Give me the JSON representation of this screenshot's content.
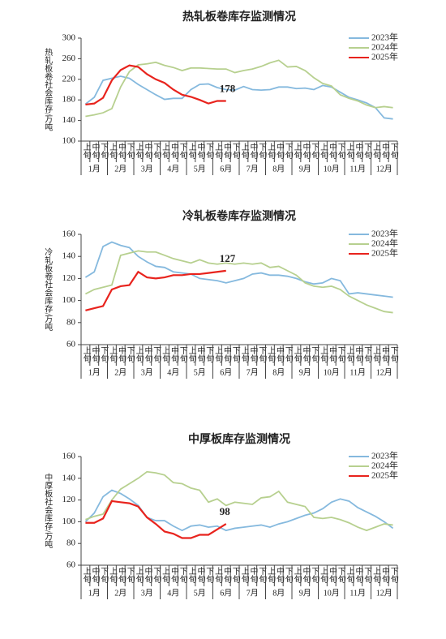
{
  "chart_data": [
    {
      "type": "line",
      "title": "热轧板卷库存监测情况",
      "ylabel": "热轧板卷社会库存/万吨",
      "categories": [
        "上旬",
        "中旬",
        "下旬",
        "上旬",
        "中旬",
        "下旬",
        "上旬",
        "中旬",
        "下旬",
        "上旬",
        "中旬",
        "下旬",
        "上旬",
        "中旬",
        "下旬",
        "上旬",
        "中旬",
        "下旬",
        "上旬",
        "中旬",
        "下旬",
        "上旬",
        "中旬",
        "下旬",
        "上旬",
        "中旬",
        "下旬",
        "上旬",
        "中旬",
        "下旬",
        "上旬",
        "中旬",
        "下旬",
        "上旬",
        "中旬",
        "下旬"
      ],
      "months": [
        "1月",
        "2月",
        "3月",
        "4月",
        "5月",
        "6月",
        "7月",
        "8月",
        "9月",
        "10月",
        "11月",
        "12月"
      ],
      "ylim": [
        100,
        300
      ],
      "yticks": [
        100,
        140,
        180,
        220,
        260,
        300
      ],
      "series": [
        {
          "name": "2023年",
          "color": "#85b9de",
          "values": [
            172,
            185,
            218,
            222,
            226,
            222,
            210,
            200,
            190,
            181,
            183,
            183,
            200,
            210,
            211,
            204,
            200,
            199,
            206,
            200,
            199,
            200,
            205,
            205,
            202,
            203,
            200,
            208,
            205,
            195,
            185,
            180,
            174,
            165,
            145,
            143
          ]
        },
        {
          "name": "2024年",
          "color": "#b7d08f",
          "values": [
            148,
            151,
            155,
            163,
            205,
            235,
            248,
            250,
            253,
            247,
            243,
            237,
            242,
            242,
            241,
            240,
            240,
            233,
            237,
            240,
            245,
            252,
            257,
            244,
            245,
            237,
            223,
            212,
            207,
            190,
            183,
            178,
            170,
            165,
            167,
            165
          ]
        },
        {
          "name": "2025年",
          "color": "#e8231d",
          "values": [
            171,
            173,
            184,
            218,
            238,
            247,
            244,
            230,
            220,
            213,
            200,
            190,
            186,
            180,
            173,
            178,
            178,
            null,
            null,
            null,
            null,
            null,
            null,
            null,
            null,
            null,
            null,
            null,
            null,
            null,
            null,
            null,
            null,
            null,
            null,
            null
          ]
        }
      ]
    },
    {
      "type": "line",
      "title": "冷轧板卷库存监测情况",
      "ylabel": "冷轧板卷社会库存/万吨",
      "categories": [
        "上旬",
        "中旬",
        "下旬",
        "上旬",
        "中旬",
        "下旬",
        "上旬",
        "中旬",
        "下旬",
        "上旬",
        "中旬",
        "下旬",
        "上旬",
        "中旬",
        "下旬",
        "上旬",
        "中旬",
        "下旬",
        "上旬",
        "中旬",
        "下旬",
        "上旬",
        "中旬",
        "下旬",
        "上旬",
        "中旬",
        "下旬",
        "上旬",
        "中旬",
        "下旬",
        "上旬",
        "中旬",
        "下旬",
        "上旬",
        "中旬",
        "下旬"
      ],
      "months": [
        "1月",
        "2月",
        "3月",
        "4月",
        "5月",
        "6月",
        "7月",
        "8月",
        "9月",
        "10月",
        "11月",
        "12月"
      ],
      "ylim": [
        60,
        160
      ],
      "yticks": [
        60,
        80,
        100,
        120,
        140,
        160
      ],
      "series": [
        {
          "name": "2023年",
          "color": "#85b9de",
          "values": [
            121,
            126,
            149,
            153,
            150,
            148,
            140,
            135,
            131,
            130,
            126,
            125,
            124,
            120,
            119,
            118,
            116,
            118,
            120,
            124,
            125,
            123,
            123,
            122,
            120,
            117,
            115,
            116,
            120,
            118,
            106,
            107,
            106,
            105,
            104,
            103
          ]
        },
        {
          "name": "2024年",
          "color": "#b7d08f",
          "values": [
            106,
            110,
            112,
            114,
            141,
            143,
            145,
            144,
            144,
            141,
            138,
            136,
            134,
            137,
            134,
            133,
            134,
            133,
            134,
            133,
            134,
            130,
            131,
            127,
            123,
            116,
            113,
            112,
            113,
            110,
            104,
            100,
            96,
            93,
            90,
            89
          ]
        },
        {
          "name": "2025年",
          "color": "#e8231d",
          "values": [
            91,
            93,
            95,
            110,
            113,
            114,
            126,
            121,
            120,
            121,
            123,
            123,
            124,
            124,
            125,
            126,
            127,
            null,
            null,
            null,
            null,
            null,
            null,
            null,
            null,
            null,
            null,
            null,
            null,
            null,
            null,
            null,
            null,
            null,
            null,
            null
          ]
        }
      ]
    },
    {
      "type": "line",
      "title": "中厚板库存监测情况",
      "ylabel": "中厚板社会库存/万吨",
      "categories": [
        "上旬",
        "中旬",
        "下旬",
        "上旬",
        "中旬",
        "下旬",
        "上旬",
        "中旬",
        "下旬",
        "上旬",
        "中旬",
        "下旬",
        "上旬",
        "中旬",
        "下旬",
        "上旬",
        "中旬",
        "下旬",
        "上旬",
        "中旬",
        "下旬",
        "上旬",
        "中旬",
        "下旬",
        "上旬",
        "中旬",
        "下旬",
        "上旬",
        "中旬",
        "下旬",
        "上旬",
        "中旬",
        "下旬",
        "上旬",
        "中旬",
        "下旬"
      ],
      "months": [
        "1月",
        "2月",
        "3月",
        "4月",
        "5月",
        "6月",
        "7月",
        "8月",
        "9月",
        "10月",
        "11月",
        "12月"
      ],
      "ylim": [
        60,
        160
      ],
      "yticks": [
        60,
        80,
        100,
        120,
        140,
        160
      ],
      "series": [
        {
          "name": "2023年",
          "color": "#85b9de",
          "values": [
            100,
            108,
            123,
            129,
            126,
            121,
            115,
            104,
            101,
            101,
            96,
            92,
            96,
            97,
            95,
            96,
            92,
            94,
            95,
            96,
            97,
            95,
            98,
            100,
            103,
            106,
            108,
            112,
            118,
            121,
            119,
            113,
            109,
            105,
            100,
            94
          ]
        },
        {
          "name": "2024年",
          "color": "#b7d08f",
          "values": [
            102,
            105,
            107,
            120,
            130,
            135,
            140,
            146,
            145,
            143,
            136,
            135,
            131,
            129,
            118,
            121,
            115,
            118,
            117,
            116,
            122,
            123,
            128,
            118,
            116,
            114,
            104,
            103,
            104,
            102,
            99,
            95,
            92,
            95,
            98,
            97
          ]
        },
        {
          "name": "2025年",
          "color": "#e8231d",
          "values": [
            99,
            99,
            103,
            119,
            118,
            117,
            114,
            104,
            98,
            91,
            89,
            85,
            85,
            88,
            88,
            93,
            98,
            null,
            null,
            null,
            null,
            null,
            null,
            null,
            null,
            null,
            null,
            null,
            null,
            null,
            null,
            null,
            null,
            null,
            null,
            null
          ]
        }
      ]
    }
  ]
}
